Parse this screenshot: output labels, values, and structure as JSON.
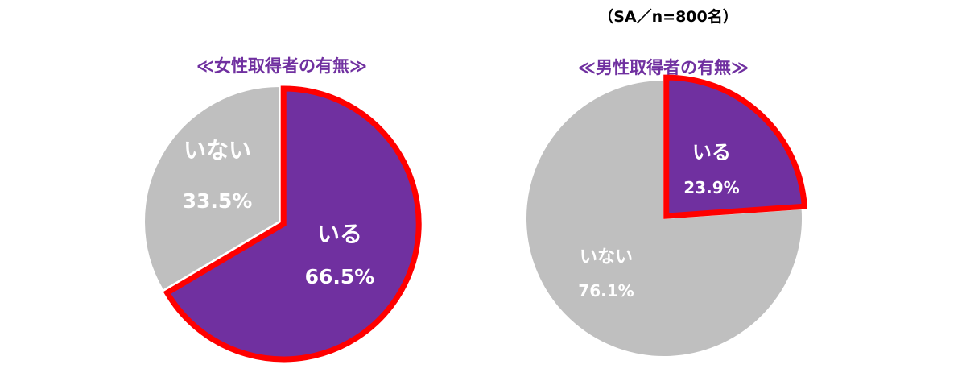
{
  "note": "（SA／n=800名）",
  "colors": {
    "accent": "#7030a0",
    "grey": "#bfbfbf",
    "highlight": "#ff0000",
    "label": "#ffffff"
  },
  "chart_data": [
    {
      "type": "pie",
      "title": "≪女性取得者の有無≫",
      "slices": [
        {
          "label": "いる",
          "value": 66.5,
          "value_label": "66.5%",
          "color": "#7030a0",
          "highlighted": true
        },
        {
          "label": "いない",
          "value": 33.5,
          "value_label": "33.5%",
          "color": "#bfbfbf",
          "highlighted": false
        }
      ]
    },
    {
      "type": "pie",
      "title": "≪男性取得者の有無≫",
      "slices": [
        {
          "label": "いる",
          "value": 23.9,
          "value_label": "23.9%",
          "color": "#7030a0",
          "highlighted": true
        },
        {
          "label": "いない",
          "value": 76.1,
          "value_label": "76.1%",
          "color": "#bfbfbf",
          "highlighted": false
        }
      ]
    }
  ]
}
